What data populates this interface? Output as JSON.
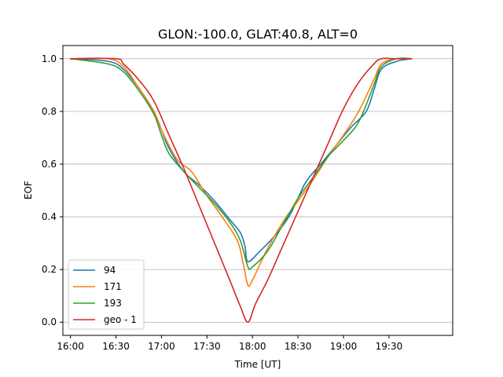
{
  "chart_data": {
    "type": "line",
    "title": "GLON:-100.0, GLAT:40.8, ALT=0",
    "xlabel": "Time [UT]",
    "ylabel": "EOF",
    "x_ticks": [
      "16:00",
      "16:30",
      "17:00",
      "17:30",
      "18:00",
      "18:30",
      "19:00",
      "19:30"
    ],
    "x_ticks_minutes": [
      960,
      990,
      1020,
      1050,
      1080,
      1110,
      1140,
      1170
    ],
    "y_ticks": [
      "0.0",
      "0.2",
      "0.4",
      "0.6",
      "0.8",
      "1.0"
    ],
    "y_ticks_values": [
      0.0,
      0.2,
      0.4,
      0.6,
      0.8,
      1.0
    ],
    "xlim": [
      "15:55",
      "20:12"
    ],
    "ylim": [
      -0.05,
      1.05
    ],
    "grid": "horizontal",
    "legend_position": "lower-left",
    "series": [
      {
        "name": "94",
        "color": "#1f77b4",
        "x": [
          "16:00",
          "16:25",
          "16:35",
          "16:45",
          "16:55",
          "17:00",
          "17:05",
          "17:15",
          "17:25",
          "17:35",
          "17:45",
          "17:52",
          "17:55",
          "17:57",
          "18:05",
          "18:15",
          "18:25",
          "18:35",
          "18:45",
          "18:55",
          "19:05",
          "19:15",
          "19:20",
          "19:25",
          "19:35",
          "19:45"
        ],
        "y": [
          1.0,
          0.99,
          0.96,
          0.89,
          0.8,
          0.73,
          0.66,
          0.57,
          0.52,
          0.46,
          0.39,
          0.34,
          0.29,
          0.23,
          0.27,
          0.33,
          0.41,
          0.53,
          0.6,
          0.67,
          0.74,
          0.8,
          0.88,
          0.96,
          0.99,
          1.0
        ]
      },
      {
        "name": "171",
        "color": "#ff7f0e",
        "x": [
          "16:00",
          "16:25",
          "16:35",
          "16:45",
          "16:55",
          "17:00",
          "17:10",
          "17:20",
          "17:30",
          "17:40",
          "17:50",
          "17:54",
          "17:57",
          "18:00",
          "18:10",
          "18:20",
          "18:30",
          "18:40",
          "18:50",
          "19:00",
          "19:10",
          "19:20",
          "19:25",
          "19:35",
          "19:45"
        ],
        "y": [
          1.0,
          1.0,
          0.97,
          0.89,
          0.8,
          0.73,
          0.62,
          0.57,
          0.48,
          0.4,
          0.31,
          0.22,
          0.14,
          0.16,
          0.28,
          0.38,
          0.46,
          0.54,
          0.63,
          0.71,
          0.8,
          0.92,
          0.98,
          1.0,
          1.0
        ]
      },
      {
        "name": "193",
        "color": "#2ca02c",
        "x": [
          "16:00",
          "16:25",
          "16:35",
          "16:45",
          "16:55",
          "17:00",
          "17:05",
          "17:15",
          "17:25",
          "17:35",
          "17:45",
          "17:52",
          "17:57",
          "18:00",
          "18:10",
          "18:20",
          "18:30",
          "18:40",
          "18:50",
          "19:00",
          "19:10",
          "19:20",
          "19:25",
          "19:35",
          "19:45"
        ],
        "y": [
          1.0,
          0.98,
          0.95,
          0.88,
          0.79,
          0.71,
          0.64,
          0.57,
          0.51,
          0.45,
          0.38,
          0.31,
          0.21,
          0.21,
          0.27,
          0.37,
          0.47,
          0.55,
          0.63,
          0.69,
          0.76,
          0.9,
          0.97,
          1.0,
          1.0
        ]
      },
      {
        "name": "geo - 1",
        "color": "#d62728",
        "x": [
          "16:00",
          "16:30",
          "16:35",
          "16:45",
          "16:55",
          "17:05",
          "17:15",
          "17:25",
          "17:35",
          "17:45",
          "17:52",
          "17:57",
          "18:02",
          "18:10",
          "18:20",
          "18:30",
          "18:40",
          "18:50",
          "19:00",
          "19:10",
          "19:20",
          "19:25",
          "19:35",
          "19:45"
        ],
        "y": [
          1.0,
          1.0,
          0.98,
          0.92,
          0.84,
          0.71,
          0.58,
          0.44,
          0.3,
          0.16,
          0.06,
          0.0,
          0.07,
          0.16,
          0.29,
          0.42,
          0.55,
          0.68,
          0.81,
          0.91,
          0.98,
          1.0,
          1.0,
          1.0
        ]
      }
    ]
  }
}
